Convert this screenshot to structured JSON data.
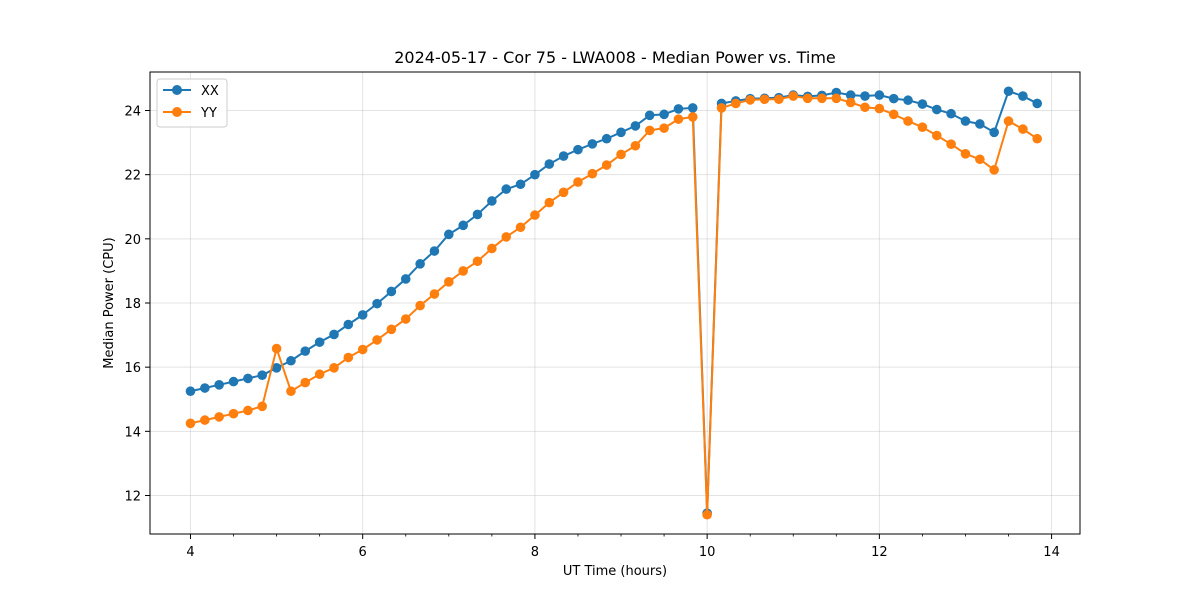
{
  "chart_data": {
    "type": "line",
    "title": "2024-05-17 - Cor 75 - LWA008 - Median Power vs. Time",
    "xlabel": "UT Time (hours)",
    "ylabel": "Median Power (CPU)",
    "xlim": [
      3.53,
      14.33
    ],
    "ylim": [
      10.8,
      25.2
    ],
    "xticks": [
      4,
      6,
      8,
      10,
      12,
      14
    ],
    "yticks": [
      12,
      14,
      16,
      18,
      20,
      22,
      24
    ],
    "grid": true,
    "legend_position": "upper left",
    "colors": {
      "XX": "#1f77b4",
      "YY": "#ff7f0e"
    },
    "x": [
      4.0,
      4.167,
      4.333,
      4.5,
      4.667,
      4.833,
      5.0,
      5.167,
      5.333,
      5.5,
      5.667,
      5.833,
      6.0,
      6.167,
      6.333,
      6.5,
      6.667,
      6.833,
      7.0,
      7.167,
      7.333,
      7.5,
      7.667,
      7.833,
      8.0,
      8.167,
      8.333,
      8.5,
      8.667,
      8.833,
      9.0,
      9.167,
      9.333,
      9.5,
      9.667,
      9.833,
      10.0,
      10.167,
      10.333,
      10.5,
      10.667,
      10.833,
      11.0,
      11.167,
      11.333,
      11.5,
      11.667,
      11.833,
      12.0,
      12.167,
      12.333,
      12.5,
      12.667,
      12.833,
      13.0,
      13.167,
      13.333,
      13.5,
      13.667,
      13.833
    ],
    "series": [
      {
        "name": "XX",
        "values": [
          15.25,
          15.35,
          15.45,
          15.55,
          15.65,
          15.75,
          15.98,
          16.2,
          16.5,
          16.78,
          17.02,
          17.33,
          17.63,
          17.98,
          18.36,
          18.75,
          19.22,
          19.62,
          20.14,
          20.42,
          20.76,
          21.18,
          21.55,
          21.7,
          22.0,
          22.33,
          22.58,
          22.78,
          22.96,
          23.12,
          23.32,
          23.52,
          23.85,
          23.88,
          24.05,
          24.08,
          11.45,
          24.22,
          24.3,
          24.37,
          24.38,
          24.4,
          24.48,
          24.44,
          24.47,
          24.56,
          24.48,
          24.45,
          24.48,
          24.37,
          24.32,
          24.2,
          24.03,
          23.9,
          23.67,
          23.58,
          23.32,
          24.6,
          24.45,
          24.22
        ]
      },
      {
        "name": "YY",
        "values": [
          14.25,
          14.35,
          14.45,
          14.55,
          14.65,
          14.78,
          16.58,
          15.25,
          15.52,
          15.78,
          15.98,
          16.3,
          16.55,
          16.85,
          17.18,
          17.5,
          17.92,
          18.28,
          18.66,
          19.0,
          19.3,
          19.7,
          20.06,
          20.36,
          20.74,
          21.13,
          21.45,
          21.77,
          22.03,
          22.3,
          22.63,
          22.9,
          23.38,
          23.45,
          23.73,
          23.8,
          11.4,
          24.08,
          24.22,
          24.33,
          24.35,
          24.35,
          24.45,
          24.38,
          24.38,
          24.38,
          24.25,
          24.1,
          24.06,
          23.88,
          23.67,
          23.48,
          23.22,
          22.95,
          22.65,
          22.48,
          22.15,
          23.67,
          23.42,
          23.12
        ]
      }
    ]
  }
}
